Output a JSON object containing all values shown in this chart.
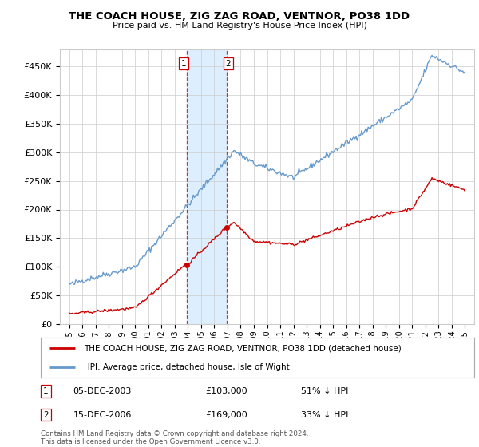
{
  "title": "THE COACH HOUSE, ZIG ZAG ROAD, VENTNOR, PO38 1DD",
  "subtitle": "Price paid vs. HM Land Registry's House Price Index (HPI)",
  "ylabel_ticks": [
    "£0",
    "£50K",
    "£100K",
    "£150K",
    "£200K",
    "£250K",
    "£300K",
    "£350K",
    "£400K",
    "£450K"
  ],
  "ytick_vals": [
    0,
    50000,
    100000,
    150000,
    200000,
    250000,
    300000,
    350000,
    400000,
    450000
  ],
  "ylim": [
    0,
    480000
  ],
  "sale1_date": "05-DEC-2003",
  "sale1_price": 103000,
  "sale1_pct": "51% ↓ HPI",
  "sale2_date": "15-DEC-2006",
  "sale2_price": 169000,
  "sale2_pct": "33% ↓ HPI",
  "legend_line1": "THE COACH HOUSE, ZIG ZAG ROAD, VENTNOR, PO38 1DD (detached house)",
  "legend_line2": "HPI: Average price, detached house, Isle of Wight",
  "footer": "Contains HM Land Registry data © Crown copyright and database right 2024.\nThis data is licensed under the Open Government Licence v3.0.",
  "red_color": "#cc0000",
  "blue_color": "#6699cc",
  "vline_color": "#cc0000",
  "highlight_color": "#ddeeff",
  "background_color": "#ffffff",
  "grid_color": "#cccccc"
}
